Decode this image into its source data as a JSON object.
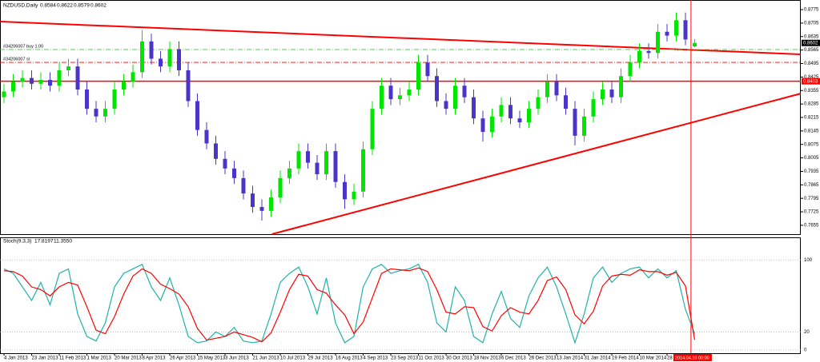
{
  "chart_data": [
    {
      "type": "candlestick",
      "title": "NZDUSD,Daily",
      "up_color": "#00e600",
      "down_color": "#4b35c8",
      "open": [
        0.832,
        0.835,
        0.84,
        0.842,
        0.839,
        0.841,
        0.838,
        0.846,
        0.848,
        0.836,
        0.826,
        0.822,
        0.826,
        0.836,
        0.84,
        0.845,
        0.861,
        0.852,
        0.848,
        0.857,
        0.846,
        0.83,
        0.815,
        0.808,
        0.8,
        0.795,
        0.79,
        0.782,
        0.775,
        0.773,
        0.78,
        0.79,
        0.795,
        0.804,
        0.798,
        0.792,
        0.804,
        0.788,
        0.779,
        0.783,
        0.805,
        0.826,
        0.838,
        0.831,
        0.833,
        0.836,
        0.85,
        0.843,
        0.83,
        0.826,
        0.838,
        0.832,
        0.821,
        0.814,
        0.822,
        0.828,
        0.821,
        0.819,
        0.826,
        0.832,
        0.84,
        0.833,
        0.826,
        0.812,
        0.822,
        0.831,
        0.836,
        0.832,
        0.843,
        0.85,
        0.856,
        0.855,
        0.866,
        0.864,
        0.872,
        0.8584
      ],
      "high": [
        0.839,
        0.844,
        0.846,
        0.846,
        0.845,
        0.845,
        0.85,
        0.852,
        0.852,
        0.84,
        0.83,
        0.83,
        0.84,
        0.844,
        0.849,
        0.867,
        0.865,
        0.856,
        0.861,
        0.861,
        0.85,
        0.834,
        0.819,
        0.812,
        0.804,
        0.799,
        0.794,
        0.786,
        0.779,
        0.784,
        0.794,
        0.799,
        0.808,
        0.808,
        0.802,
        0.808,
        0.808,
        0.792,
        0.787,
        0.809,
        0.83,
        0.842,
        0.842,
        0.837,
        0.84,
        0.854,
        0.854,
        0.847,
        0.834,
        0.842,
        0.842,
        0.836,
        0.825,
        0.826,
        0.832,
        0.832,
        0.825,
        0.83,
        0.836,
        0.844,
        0.844,
        0.837,
        0.83,
        0.826,
        0.835,
        0.84,
        0.84,
        0.847,
        0.854,
        0.86,
        0.86,
        0.87,
        0.87,
        0.876,
        0.876,
        0.8622
      ],
      "low": [
        0.829,
        0.832,
        0.837,
        0.836,
        0.836,
        0.835,
        0.835,
        0.843,
        0.833,
        0.823,
        0.819,
        0.819,
        0.823,
        0.833,
        0.837,
        0.842,
        0.849,
        0.845,
        0.845,
        0.843,
        0.827,
        0.812,
        0.805,
        0.797,
        0.792,
        0.787,
        0.779,
        0.772,
        0.768,
        0.77,
        0.777,
        0.787,
        0.792,
        0.795,
        0.789,
        0.789,
        0.785,
        0.774,
        0.776,
        0.78,
        0.802,
        0.823,
        0.828,
        0.828,
        0.83,
        0.833,
        0.84,
        0.827,
        0.823,
        0.823,
        0.829,
        0.818,
        0.809,
        0.811,
        0.819,
        0.818,
        0.816,
        0.816,
        0.823,
        0.829,
        0.83,
        0.823,
        0.807,
        0.809,
        0.819,
        0.828,
        0.829,
        0.829,
        0.84,
        0.847,
        0.852,
        0.852,
        0.861,
        0.861,
        0.859,
        0.8579
      ],
      "close": [
        0.835,
        0.84,
        0.842,
        0.839,
        0.841,
        0.838,
        0.846,
        0.848,
        0.836,
        0.826,
        0.822,
        0.826,
        0.836,
        0.84,
        0.845,
        0.861,
        0.852,
        0.848,
        0.857,
        0.846,
        0.83,
        0.815,
        0.808,
        0.8,
        0.795,
        0.79,
        0.782,
        0.775,
        0.773,
        0.78,
        0.79,
        0.795,
        0.804,
        0.798,
        0.792,
        0.804,
        0.788,
        0.779,
        0.783,
        0.805,
        0.826,
        0.838,
        0.831,
        0.833,
        0.836,
        0.85,
        0.843,
        0.83,
        0.826,
        0.838,
        0.832,
        0.821,
        0.814,
        0.822,
        0.828,
        0.821,
        0.819,
        0.826,
        0.832,
        0.84,
        0.833,
        0.826,
        0.812,
        0.822,
        0.831,
        0.836,
        0.832,
        0.843,
        0.85,
        0.856,
        0.855,
        0.866,
        0.864,
        0.872,
        0.862,
        0.8602
      ],
      "ylim": [
        0.7609,
        0.8825
      ],
      "yticks": [
        0.8775,
        0.8705,
        0.8635,
        0.8565,
        0.8495,
        0.8425,
        0.8355,
        0.8285,
        0.8215,
        0.8145,
        0.8075,
        0.8005,
        0.7935,
        0.7865,
        0.7795,
        0.7725,
        0.7655
      ],
      "xticks": [
        {
          "value": 0,
          "label": "4 Jan 2013"
        },
        {
          "value": 3,
          "label": "23 Jan 2013"
        },
        {
          "value": 6,
          "label": "11 Feb 2013"
        },
        {
          "value": 9,
          "label": "1 Mar 2013"
        },
        {
          "value": 12,
          "label": "20 Mar 2013"
        },
        {
          "value": 15,
          "label": "8 Apr 2013"
        },
        {
          "value": 18,
          "label": "26 Apr 2013"
        },
        {
          "value": 21,
          "label": "15 May 2013"
        },
        {
          "value": 24,
          "label": "3 Jun 2013"
        },
        {
          "value": 27,
          "label": "21 Jun 2013"
        },
        {
          "value": 30,
          "label": "10 Jul 2013"
        },
        {
          "value": 33,
          "label": "29 Jul 2013"
        },
        {
          "value": 36,
          "label": "16 Aug 2013"
        },
        {
          "value": 39,
          "label": "4 Sep 2013"
        },
        {
          "value": 42,
          "label": "23 Sep 2013"
        },
        {
          "value": 45,
          "label": "11 Oct 2013"
        },
        {
          "value": 48,
          "label": "30 Oct 2013"
        },
        {
          "value": 51,
          "label": "18 Nov 2013"
        },
        {
          "value": 54,
          "label": "6 Dec 2013"
        },
        {
          "value": 57,
          "label": "26 Dec 2013"
        },
        {
          "value": 60,
          "label": "13 Jan 2014"
        },
        {
          "value": 63,
          "label": "31 Jan 2014"
        },
        {
          "value": 66,
          "label": "19 Feb 2014"
        },
        {
          "value": 69,
          "label": "10 Mar 2014"
        },
        {
          "value": 72,
          "label": "28 Mar 2014"
        }
      ],
      "trendlines": [
        {
          "color": "#ff0000",
          "start": {
            "x": -0.4,
            "y": 0.8713
          },
          "end": {
            "x": 86.5,
            "y": 0.8543
          }
        },
        {
          "color": "#ff0000",
          "start": {
            "x": 29.1,
            "y": 0.7609
          },
          "end": {
            "x": 86.5,
            "y": 0.8339
          }
        }
      ],
      "hlines": [
        {
          "value": 0.8403,
          "color": "#ff0000",
          "style": "solid"
        },
        {
          "value": 0.8568,
          "color": "#33cc33",
          "style": "dashdot",
          "label": "#34206007 buy 1.00"
        },
        {
          "value": 0.8501,
          "color": "#ff0000",
          "style": "dashdot",
          "label": "#34206007 sl"
        }
      ],
      "cursor": {
        "x": 74.6,
        "color": "#ff0000",
        "label": "2014.04.10 00:00"
      }
    },
    {
      "type": "line",
      "title": "Stoch(9,3,3)",
      "series": [
        {
          "name": "%K",
          "color": "#20b2aa",
          "values": [
            90,
            85,
            70,
            55,
            75,
            50,
            85,
            90,
            40,
            15,
            10,
            30,
            70,
            85,
            90,
            95,
            70,
            55,
            80,
            50,
            15,
            8,
            10,
            20,
            15,
            25,
            10,
            8,
            10,
            40,
            75,
            85,
            92,
            70,
            40,
            80,
            30,
            8,
            15,
            70,
            90,
            95,
            85,
            88,
            90,
            95,
            75,
            30,
            20,
            70,
            55,
            15,
            8,
            40,
            65,
            35,
            25,
            60,
            80,
            92,
            70,
            40,
            8,
            40,
            80,
            92,
            75,
            85,
            90,
            92,
            80,
            90,
            80,
            88,
            45,
            17.8197
          ]
        },
        {
          "name": "%D",
          "color": "#ff0000",
          "values": [
            88,
            87,
            82,
            70,
            67,
            60,
            70,
            75,
            72,
            48,
            22,
            18,
            37,
            62,
            82,
            90,
            85,
            73,
            68,
            62,
            48,
            24,
            11,
            13,
            15,
            20,
            17,
            14,
            9,
            19,
            42,
            67,
            84,
            82,
            67,
            63,
            50,
            39,
            18,
            31,
            58,
            85,
            90,
            89,
            88,
            91,
            87,
            67,
            42,
            40,
            48,
            47,
            26,
            21,
            38,
            47,
            42,
            40,
            55,
            77,
            81,
            67,
            39,
            29,
            43,
            71,
            82,
            84,
            83,
            89,
            87,
            87,
            83,
            86,
            71,
            11.355
          ],
          "value_labels": [
            null,
            null,
            null,
            null,
            null,
            null,
            null,
            null,
            null,
            null,
            null,
            null,
            null,
            null,
            null,
            null,
            null,
            null,
            null,
            null,
            null,
            null,
            null,
            null,
            null,
            null,
            null,
            null,
            null,
            null,
            null,
            null,
            null,
            null,
            null,
            null,
            null,
            null,
            null,
            null,
            null,
            null,
            null,
            null,
            null,
            null,
            null,
            null,
            null,
            null,
            null,
            null,
            null,
            null,
            null,
            null,
            null,
            null,
            null,
            null,
            null,
            null,
            null,
            null,
            null,
            null,
            null,
            null,
            null,
            null,
            null,
            null,
            null,
            null,
            null,
            "11.3550"
          ]
        }
      ],
      "ylim": [
        -3.6,
        125
      ],
      "yticks": [
        0,
        20,
        100
      ],
      "grid": true
    }
  ]
}
